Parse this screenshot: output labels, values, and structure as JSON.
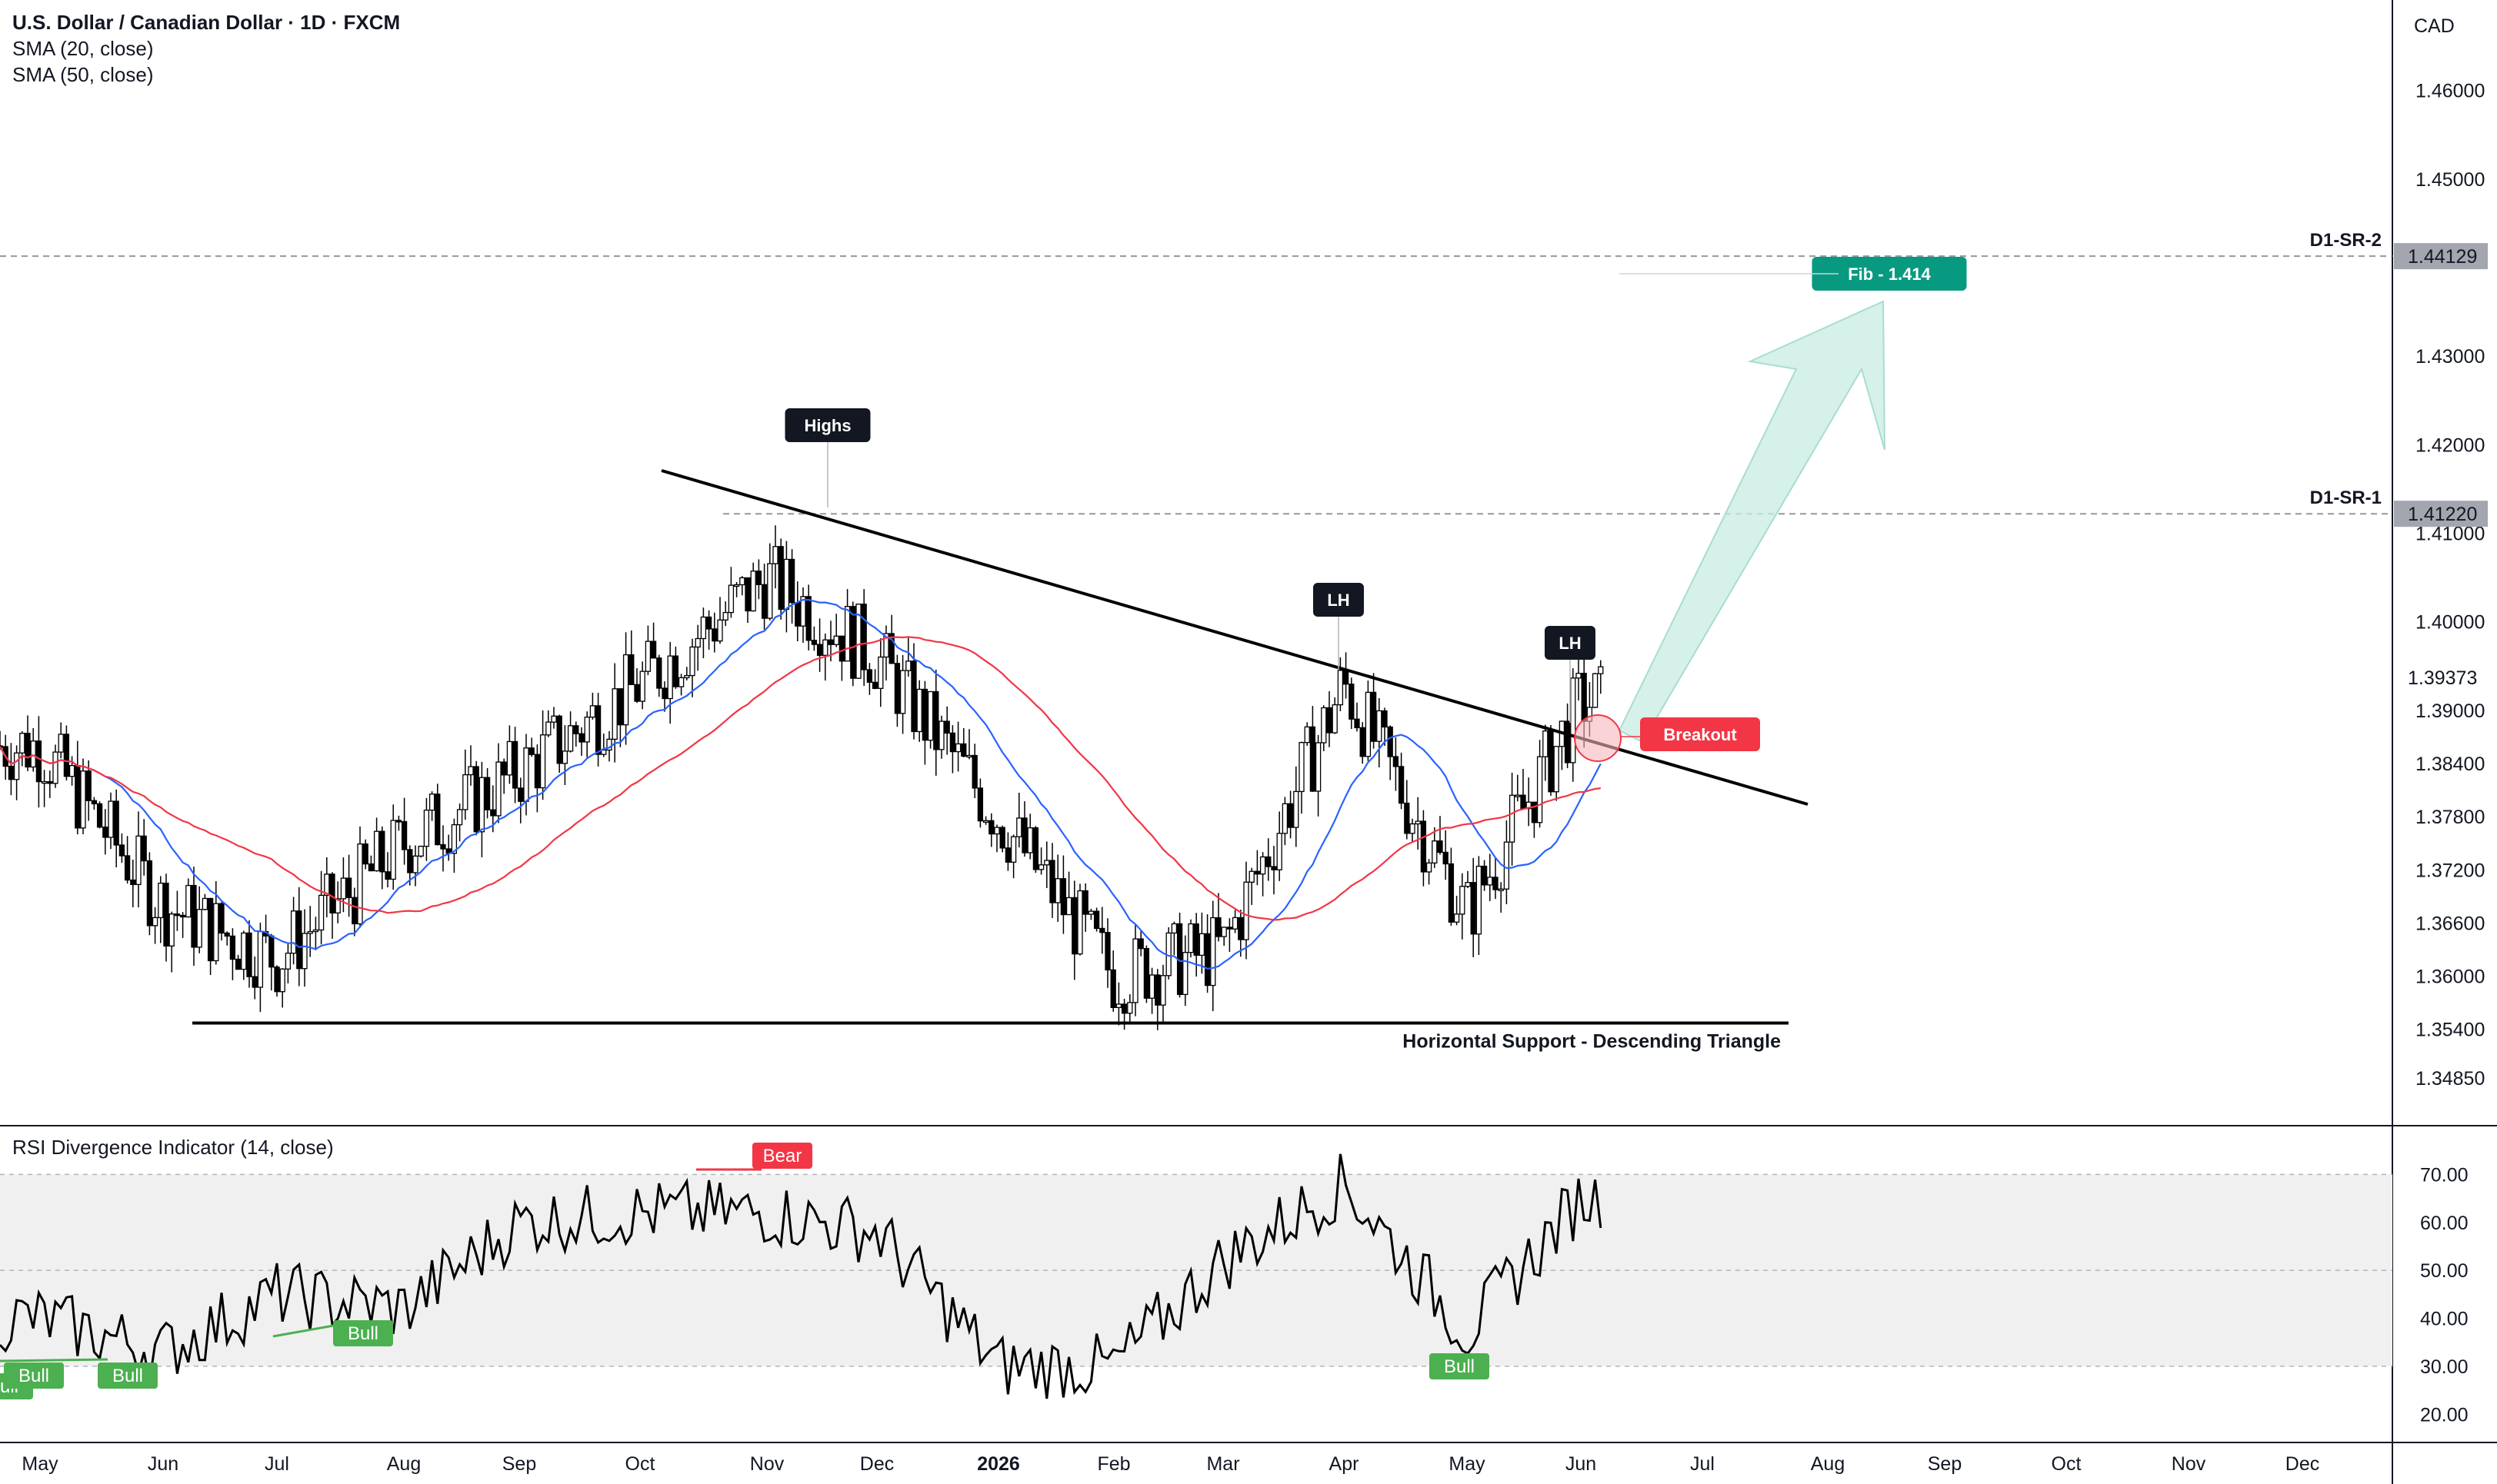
{
  "header": {
    "title": "U.S. Dollar / Canadian Dollar · 1D · FXCM",
    "indicators": [
      "SMA (20, close)",
      "SMA (50, close)"
    ]
  },
  "currency_label": "CAD",
  "rsi_panel": {
    "title": "RSI Divergence Indicator (14, close)"
  },
  "colors": {
    "candle": "#000000",
    "sma20": "#2962ff",
    "sma50": "#f23645",
    "bull_label": "#4caf50",
    "bear_label": "#f23645",
    "fib_label": "#089981",
    "breakout_label": "#f23645",
    "arrow_fill": "#c8ebe3"
  },
  "chart_data": [
    {
      "type": "candlestick",
      "title": "U.S. Dollar / Canadian Dollar · 1D · FXCM",
      "xlabel": "",
      "ylabel": "",
      "x_ticks": [
        "May",
        "Jun",
        "Jul",
        "Aug",
        "Sep",
        "Oct",
        "Nov",
        "Dec",
        "2026",
        "Feb",
        "Mar",
        "Apr",
        "May",
        "Jun",
        "Jul",
        "Aug",
        "Sep",
        "Oct",
        "Nov",
        "Dec"
      ],
      "y_ticks": [
        "1.46000",
        "1.45000",
        "1.43000",
        "1.42000",
        "1.41000",
        "1.40000",
        "1.39000",
        "1.38400",
        "1.37800",
        "1.37200",
        "1.36600",
        "1.36000",
        "1.35400",
        "1.34850"
      ],
      "price_labels": [
        "1.44129",
        "1.41220",
        "1.39373"
      ],
      "ylim": [
        1.3465,
        1.465
      ],
      "grid": false,
      "series": [
        {
          "name": "SMA (20, close)",
          "color": "#2962ff"
        },
        {
          "name": "SMA (50, close)",
          "color": "#f23645"
        }
      ],
      "approx_closes": {
        "x": [
          "May",
          "Jun",
          "Jul",
          "Aug",
          "Sep",
          "Oct",
          "Nov",
          "Dec",
          "2026",
          "Feb",
          "Mar",
          "Apr",
          "May",
          "Jun"
        ],
        "y": [
          1.386,
          1.368,
          1.362,
          1.375,
          1.383,
          1.393,
          1.405,
          1.396,
          1.378,
          1.36,
          1.363,
          1.393,
          1.367,
          1.391
        ]
      },
      "levels": [
        {
          "label": "D1-SR-2",
          "value": 1.44129
        },
        {
          "label": "D1-SR-1",
          "value": 1.4122
        },
        {
          "label": "Horizontal Support - Descending Triangle",
          "value": 1.3547
        }
      ],
      "annotations": [
        "Highs",
        "LH",
        "LH",
        "Breakout",
        "Fib - 1.414"
      ]
    },
    {
      "type": "line",
      "title": "RSI Divergence Indicator (14, close)",
      "y_ticks": [
        "70.00",
        "60.00",
        "50.00",
        "40.00",
        "30.00",
        "20.00"
      ],
      "ylim": [
        17,
        76
      ],
      "band": [
        30,
        70
      ],
      "grid": false,
      "labels": [
        "Bull",
        "Bull",
        "Bull",
        "Bull",
        "Bear",
        "Bull"
      ],
      "approx_values": {
        "x": [
          "May",
          "Jun",
          "Jul",
          "Aug",
          "Sep",
          "Oct",
          "Nov",
          "Dec",
          "2026",
          "Feb",
          "Mar",
          "Apr",
          "May",
          "Jun"
        ],
        "y": [
          40,
          33,
          45,
          42,
          60,
          62,
          62,
          58,
          30,
          30,
          52,
          68,
          37,
          65
        ]
      }
    }
  ]
}
